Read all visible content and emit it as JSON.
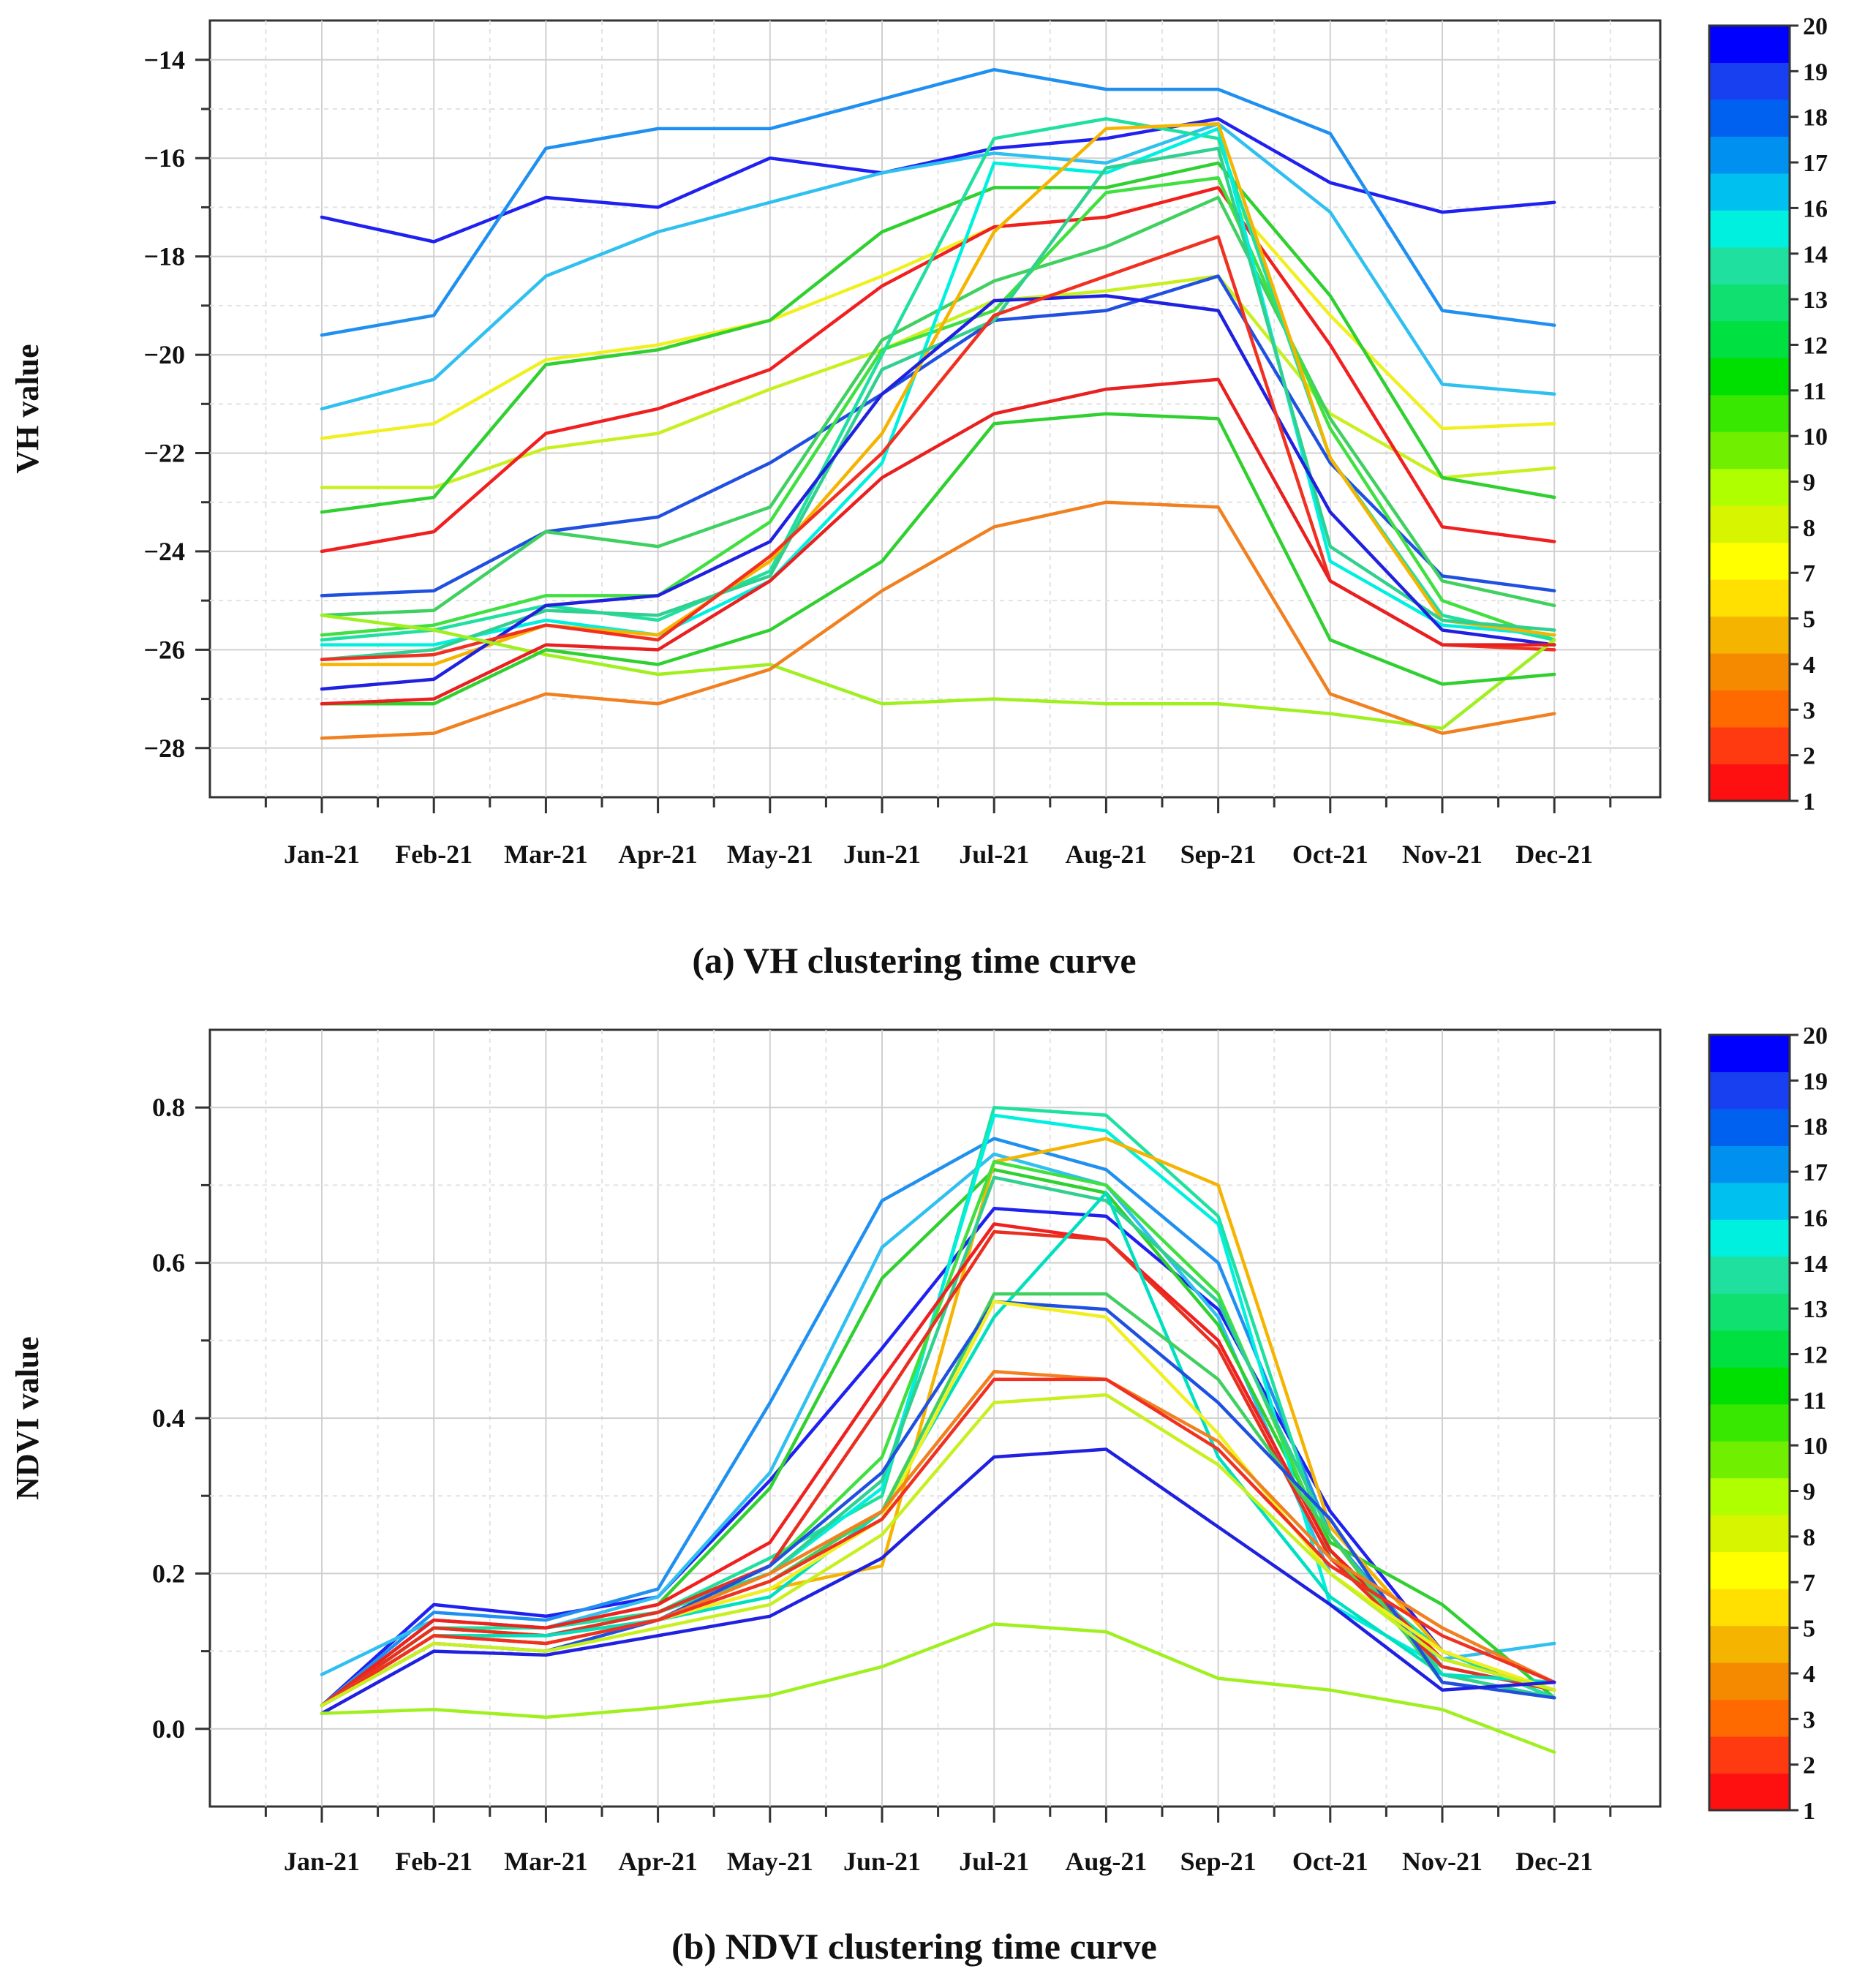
{
  "categories": [
    "Jan-21",
    "Feb-21",
    "Mar-21",
    "Apr-21",
    "May-21",
    "Jun-21",
    "Jul-21",
    "Aug-21",
    "Sep-21",
    "Oct-21",
    "Nov-21",
    "Dec-21"
  ],
  "colorbar": {
    "labels": [
      "1",
      "2",
      "3",
      "4",
      "5",
      "7",
      "8",
      "9",
      "10",
      "11",
      "12",
      "13",
      "14",
      "16",
      "17",
      "18",
      "19",
      "20"
    ],
    "colors": [
      "#ff1010",
      "#ff3a10",
      "#ff6a00",
      "#f58a00",
      "#f5b400",
      "#ffe000",
      "#ffff00",
      "#d8f500",
      "#b0ff00",
      "#70f000",
      "#38e800",
      "#00e000",
      "#00e040",
      "#10e070",
      "#20e0a0",
      "#00f0e0",
      "#00c0f0",
      "#0090f0",
      "#0060f0",
      "#1840f0",
      "#0000ff"
    ]
  },
  "chart_data": [
    {
      "type": "line",
      "title": "(a) VH clustering time curve",
      "xlabel": "",
      "ylabel": "VH value",
      "ylim": [
        -29,
        -13.2
      ],
      "yticks": [
        -28,
        -26,
        -24,
        -22,
        -20,
        -18,
        -16,
        -14
      ],
      "ytick_labels": [
        "−28",
        "−26",
        "−24",
        "−22",
        "−20",
        "−18",
        "−16",
        "−14"
      ],
      "series": [
        {
          "color": "#2020f0",
          "values": [
            -17.2,
            -17.7,
            -16.8,
            -17.0,
            -16.0,
            -16.3,
            -15.8,
            -15.6,
            -15.2,
            -16.5,
            -17.1,
            -16.9
          ]
        },
        {
          "color": "#2090f0",
          "values": [
            -19.6,
            -19.2,
            -15.8,
            -15.4,
            -15.4,
            -14.8,
            -14.2,
            -14.6,
            -14.6,
            -15.5,
            -19.1,
            -19.4
          ]
        },
        {
          "color": "#30c0f0",
          "values": [
            -21.1,
            -20.5,
            -18.4,
            -17.5,
            -16.9,
            -16.3,
            -15.9,
            -16.1,
            -15.3,
            -17.1,
            -20.6,
            -20.8
          ]
        },
        {
          "color": "#f0f020",
          "values": [
            -21.7,
            -21.4,
            -20.1,
            -19.8,
            -19.3,
            -18.4,
            -17.4,
            -17.2,
            -16.6,
            -19.2,
            -21.5,
            -21.4
          ]
        },
        {
          "color": "#c8f020",
          "values": [
            -22.7,
            -22.7,
            -21.9,
            -21.6,
            -20.7,
            -19.9,
            -18.9,
            -18.7,
            -18.4,
            -21.2,
            -22.5,
            -22.3
          ]
        },
        {
          "color": "#30d030",
          "values": [
            -23.2,
            -22.9,
            -20.2,
            -19.9,
            -19.3,
            -17.5,
            -16.6,
            -16.6,
            -16.1,
            -18.8,
            -22.5,
            -22.9
          ]
        },
        {
          "color": "#f02020",
          "values": [
            -24.0,
            -23.6,
            -21.6,
            -21.1,
            -20.3,
            -18.6,
            -17.4,
            -17.2,
            -16.6,
            -19.8,
            -23.5,
            -23.8
          ]
        },
        {
          "color": "#2050e0",
          "values": [
            -24.9,
            -24.8,
            -23.6,
            -23.3,
            -22.2,
            -20.8,
            -19.3,
            -19.1,
            -18.4,
            -22.2,
            -24.5,
            -24.8
          ]
        },
        {
          "color": "#40d060",
          "values": [
            -25.3,
            -25.2,
            -23.6,
            -23.9,
            -23.1,
            -19.7,
            -18.5,
            -17.8,
            -16.8,
            -21.3,
            -24.6,
            -25.1
          ]
        },
        {
          "color": "#40e040",
          "values": [
            -25.7,
            -25.5,
            -24.9,
            -24.9,
            -23.4,
            -19.9,
            -19.1,
            -16.7,
            -16.4,
            -21.5,
            -25.0,
            -25.8
          ]
        },
        {
          "color": "#20e0a0",
          "values": [
            -25.8,
            -25.6,
            -25.1,
            -25.4,
            -24.4,
            -20.0,
            -15.6,
            -15.2,
            -15.6,
            -22.1,
            -25.3,
            -25.8
          ]
        },
        {
          "color": "#00f0e0",
          "values": [
            -25.9,
            -25.9,
            -25.4,
            -25.7,
            -24.6,
            -22.2,
            -16.1,
            -16.3,
            -15.4,
            -24.2,
            -25.5,
            -25.7
          ]
        },
        {
          "color": "#f5b400",
          "values": [
            -26.3,
            -26.3,
            -25.5,
            -25.7,
            -24.2,
            -21.6,
            -17.5,
            -15.4,
            -15.3,
            -22.1,
            -25.4,
            -25.7
          ]
        },
        {
          "color": "#30d090",
          "values": [
            -26.2,
            -26.0,
            -25.2,
            -25.3,
            -24.5,
            -20.3,
            -19.3,
            -16.2,
            -15.8,
            -23.9,
            -25.4,
            -25.6
          ]
        },
        {
          "color": "#2020e0",
          "values": [
            -26.8,
            -26.6,
            -25.1,
            -24.9,
            -23.8,
            -20.8,
            -18.9,
            -18.8,
            -19.1,
            -23.2,
            -25.6,
            -25.9
          ]
        },
        {
          "color": "#f03020",
          "values": [
            -26.2,
            -26.1,
            -25.5,
            -25.8,
            -24.1,
            -22.0,
            -19.2,
            -18.4,
            -17.6,
            -24.6,
            -25.9,
            -26.0
          ]
        },
        {
          "color": "#a0f020",
          "values": [
            -25.3,
            -25.6,
            -26.1,
            -26.5,
            -26.3,
            -27.1,
            -27.0,
            -27.1,
            -27.1,
            -27.3,
            -27.6,
            -25.8
          ]
        },
        {
          "color": "#30d030",
          "values": [
            -27.1,
            -27.1,
            -26.0,
            -26.3,
            -25.6,
            -24.2,
            -21.4,
            -21.2,
            -21.3,
            -25.8,
            -26.7,
            -26.5
          ]
        },
        {
          "color": "#e82020",
          "values": [
            -27.1,
            -27.0,
            -25.9,
            -26.0,
            -24.6,
            -22.5,
            -21.2,
            -20.7,
            -20.5,
            -24.6,
            -25.9,
            -25.9
          ]
        },
        {
          "color": "#f08020",
          "values": [
            -27.8,
            -27.7,
            -26.9,
            -27.1,
            -26.4,
            -24.8,
            -23.5,
            -23.0,
            -23.1,
            -26.9,
            -27.7,
            -27.3
          ]
        }
      ]
    },
    {
      "type": "line",
      "title": "(b) NDVI clustering time curve",
      "xlabel": "",
      "ylabel": "NDVI value",
      "ylim": [
        -0.1,
        0.9
      ],
      "yticks": [
        0.0,
        0.2,
        0.4,
        0.6,
        0.8
      ],
      "ytick_labels": [
        "0.0",
        "0.2",
        "0.4",
        "0.6",
        "0.8"
      ],
      "series": [
        {
          "color": "#2020f0",
          "values": [
            0.03,
            0.16,
            0.145,
            0.17,
            0.32,
            0.49,
            0.67,
            0.66,
            0.54,
            0.28,
            0.1,
            0.04
          ]
        },
        {
          "color": "#2090f0",
          "values": [
            0.03,
            0.15,
            0.14,
            0.18,
            0.42,
            0.68,
            0.76,
            0.72,
            0.6,
            0.25,
            0.08,
            0.05
          ]
        },
        {
          "color": "#30c0f0",
          "values": [
            0.07,
            0.14,
            0.13,
            0.17,
            0.33,
            0.62,
            0.74,
            0.7,
            0.53,
            0.2,
            0.09,
            0.11
          ]
        },
        {
          "color": "#30d030",
          "values": [
            0.03,
            0.14,
            0.13,
            0.16,
            0.31,
            0.58,
            0.72,
            0.69,
            0.52,
            0.24,
            0.16,
            0.04
          ]
        },
        {
          "color": "#20e0a0",
          "values": [
            0.03,
            0.13,
            0.13,
            0.15,
            0.22,
            0.3,
            0.8,
            0.79,
            0.66,
            0.22,
            0.1,
            0.04
          ]
        },
        {
          "color": "#00f0e0",
          "values": [
            0.03,
            0.13,
            0.12,
            0.15,
            0.2,
            0.31,
            0.79,
            0.77,
            0.65,
            0.16,
            0.08,
            0.05
          ]
        },
        {
          "color": "#f5b400",
          "values": [
            0.03,
            0.12,
            0.12,
            0.14,
            0.18,
            0.21,
            0.73,
            0.76,
            0.7,
            0.26,
            0.1,
            0.05
          ]
        },
        {
          "color": "#40e040",
          "values": [
            0.03,
            0.13,
            0.12,
            0.15,
            0.21,
            0.35,
            0.73,
            0.7,
            0.56,
            0.23,
            0.07,
            0.04
          ]
        },
        {
          "color": "#30d090",
          "values": [
            0.03,
            0.13,
            0.12,
            0.15,
            0.2,
            0.32,
            0.71,
            0.68,
            0.55,
            0.25,
            0.07,
            0.04
          ]
        },
        {
          "color": "#f02020",
          "values": [
            0.03,
            0.14,
            0.13,
            0.16,
            0.24,
            0.45,
            0.65,
            0.63,
            0.5,
            0.23,
            0.09,
            0.05
          ]
        },
        {
          "color": "#e83020",
          "values": [
            0.03,
            0.13,
            0.12,
            0.15,
            0.21,
            0.42,
            0.64,
            0.63,
            0.49,
            0.22,
            0.08,
            0.05
          ]
        },
        {
          "color": "#00e0c0",
          "values": [
            0.03,
            0.12,
            0.12,
            0.14,
            0.17,
            0.28,
            0.53,
            0.69,
            0.35,
            0.17,
            0.07,
            0.06
          ]
        },
        {
          "color": "#40d060",
          "values": [
            0.03,
            0.12,
            0.11,
            0.14,
            0.19,
            0.28,
            0.56,
            0.56,
            0.45,
            0.25,
            0.06,
            0.04
          ]
        },
        {
          "color": "#2050e0",
          "values": [
            0.03,
            0.11,
            0.1,
            0.14,
            0.21,
            0.33,
            0.55,
            0.54,
            0.42,
            0.27,
            0.06,
            0.04
          ]
        },
        {
          "color": "#f0f020",
          "values": [
            0.03,
            0.12,
            0.11,
            0.14,
            0.18,
            0.27,
            0.55,
            0.53,
            0.38,
            0.2,
            0.1,
            0.05
          ]
        },
        {
          "color": "#f08020",
          "values": [
            0.03,
            0.12,
            0.11,
            0.14,
            0.2,
            0.28,
            0.46,
            0.45,
            0.37,
            0.22,
            0.13,
            0.06
          ]
        },
        {
          "color": "#f03020",
          "values": [
            0.03,
            0.12,
            0.11,
            0.14,
            0.19,
            0.27,
            0.45,
            0.45,
            0.36,
            0.21,
            0.12,
            0.06
          ]
        },
        {
          "color": "#c8f020",
          "values": [
            0.03,
            0.11,
            0.1,
            0.13,
            0.16,
            0.25,
            0.42,
            0.43,
            0.34,
            0.2,
            0.09,
            0.05
          ]
        },
        {
          "color": "#2020e0",
          "values": [
            0.02,
            0.1,
            0.095,
            0.12,
            0.145,
            0.22,
            0.35,
            0.36,
            0.26,
            0.16,
            0.05,
            0.06
          ]
        },
        {
          "color": "#a0f020",
          "values": [
            0.02,
            0.025,
            0.015,
            0.027,
            0.043,
            0.08,
            0.135,
            0.125,
            0.065,
            0.05,
            0.025,
            -0.03
          ]
        }
      ]
    }
  ]
}
